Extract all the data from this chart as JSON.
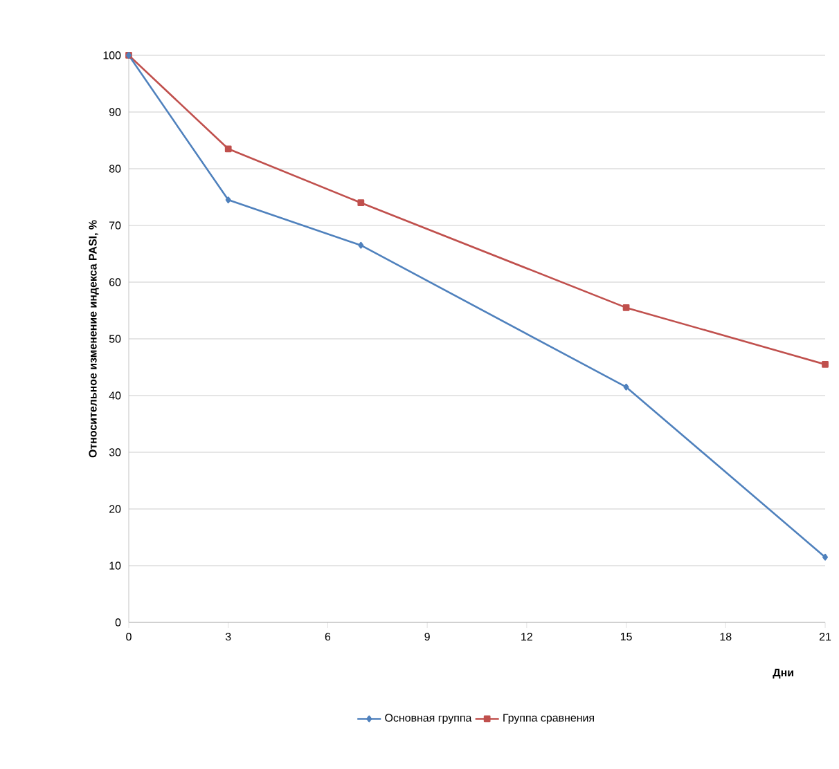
{
  "chart_data": {
    "type": "line",
    "xlabel": "Дни",
    "ylabel": "Относительное изменение индекса PASI, %",
    "x": [
      0,
      3,
      7,
      15,
      21
    ],
    "series": [
      {
        "name": "Основная группа",
        "color": "#4f81bd",
        "marker": "diamond",
        "values": [
          100,
          74.5,
          66.5,
          41.5,
          11.5
        ]
      },
      {
        "name": "Группа сравнения",
        "color": "#c0504d",
        "marker": "square",
        "values": [
          100,
          83.5,
          74,
          55.5,
          45.5
        ]
      }
    ],
    "xlim": [
      0,
      21
    ],
    "xticks": [
      0,
      3,
      6,
      9,
      12,
      15,
      18,
      21
    ],
    "ylim": [
      0,
      100
    ],
    "yticks": [
      0,
      10,
      20,
      30,
      40,
      50,
      60,
      70,
      80,
      90,
      100
    ],
    "grid": "y",
    "legend": "bottom",
    "line_style": "solid"
  }
}
